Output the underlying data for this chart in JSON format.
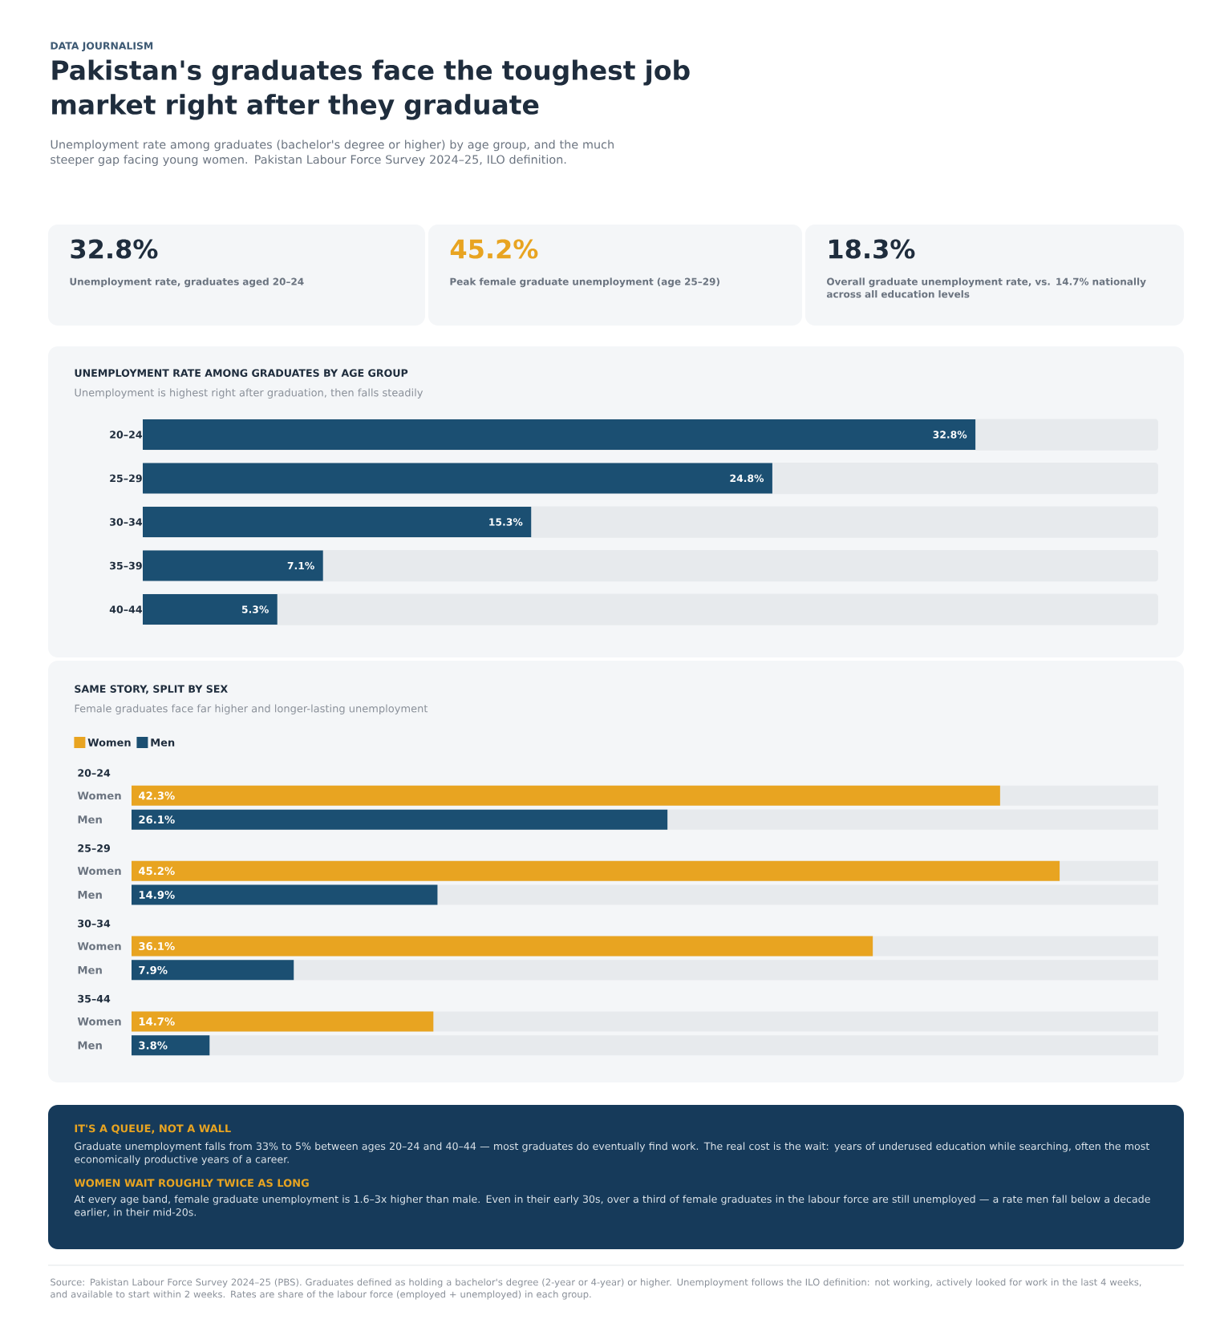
{
  "chart_data": [
    {
      "type": "other",
      "title": "Pakistan's graduates face the toughest job market right after they graduate",
      "subtitle": "Unemployment rate among graduates (bachelor's degree or higher) by age group, and the much steeper gap facing young women. Pakistan Labour Force Survey 2024–25, ILO definition.",
      "annotations": [
        "DATA JOURNALISM",
        "32.8%",
        "Unemployment rate, graduates aged 20–24",
        "45.2%",
        "Peak female graduate unemployment (age 25–29)",
        "18.3%",
        "Overall graduate unemployment rate, vs. 14.7% nationally across all education levels"
      ]
    },
    {
      "type": "bar",
      "orientation": "horizontal",
      "title": "UNEMPLOYMENT RATE AMONG GRADUATES BY AGE GROUP",
      "subtitle": "Unemployment is highest right after graduation, then falls steadily",
      "categories": [
        "20–24",
        "25–29",
        "30–34",
        "35–39",
        "40–44"
      ],
      "values": [
        32.8,
        24.8,
        15.3,
        7.1,
        5.3
      ],
      "value_labels": [
        "32.8%",
        "24.8%",
        "15.3%",
        "7.1%",
        "5.3%"
      ],
      "color": "#1b4f72",
      "xlim": [
        0,
        40
      ]
    },
    {
      "type": "bar",
      "orientation": "horizontal",
      "title": "SAME STORY, SPLIT BY SEX",
      "subtitle": "Female graduates face far higher and longer-lasting unemployment",
      "legend": "top left",
      "categories": [
        "20–24",
        "25–29",
        "30–34",
        "35–44"
      ],
      "xlim": [
        0,
        50
      ],
      "series": [
        {
          "name": "Women",
          "color": "#e8a421",
          "values": [
            42.3,
            45.2,
            36.1,
            14.7
          ],
          "value_labels": [
            "42.3%",
            "45.2%",
            "36.1%",
            "14.7%"
          ]
        },
        {
          "name": "Men",
          "color": "#1b4f72",
          "values": [
            26.1,
            14.9,
            7.9,
            3.8
          ],
          "value_labels": [
            "26.1%",
            "14.9%",
            "7.9%",
            "3.8%"
          ]
        }
      ],
      "annotations": [
        "IT'S A QUEUE, NOT A WALL",
        "Graduate unemployment falls from 33% to 5% between ages 20–24 and 40–44 — most graduates do eventually find work. The real cost is the wait: years of underused education while searching, often the most economically productive years of a career.",
        "WOMEN WAIT ROUGHLY TWICE AS LONG",
        "At every age band, female graduate unemployment is 1.6–3x higher than male. Even in their early 30s, over a third of female graduates in the labour force are still unemployed — a rate men fall below a decade earlier, in their mid-20s.",
        "Source: Pakistan Labour Force Survey 2024–25 (PBS). Graduates defined as holding a bachelor's degree (2-year or 4-year) or higher. Unemployment follows the ILO definition: not working, actively looked for work in the last 4 weeks, and available to start within 2 weeks. Rates are share of the labour force (employed + unemployed) in each group."
      ]
    }
  ]
}
